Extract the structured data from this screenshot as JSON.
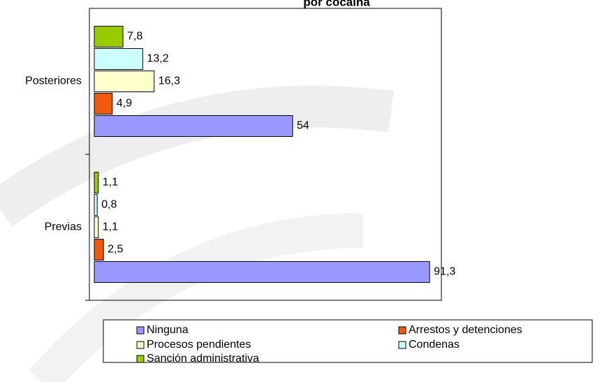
{
  "chart_data": {
    "type": "hbar",
    "title": "por cocaína",
    "categories": [
      "Posteriores",
      "Previas"
    ],
    "series": [
      {
        "name": "Ninguna",
        "color": "#9999ff",
        "values": [
          54,
          91.3
        ],
        "value_labels": [
          "54",
          "91,3"
        ]
      },
      {
        "name": "Arrestos y detenciones",
        "color": "#f05a0a",
        "values": [
          4.9,
          2.5
        ],
        "value_labels": [
          "4,9",
          "2,5"
        ]
      },
      {
        "name": "Procesos pendientes",
        "color": "#ffffcc",
        "values": [
          16.3,
          1.1
        ],
        "value_labels": [
          "16,3",
          "1,1"
        ]
      },
      {
        "name": "Condenas",
        "color": "#ccffff",
        "values": [
          13.2,
          0.8
        ],
        "value_labels": [
          "13,2",
          "0,8"
        ]
      },
      {
        "name": "Sanción administrativa",
        "color": "#99cc00",
        "values": [
          7.8,
          1.1
        ],
        "value_labels": [
          "7,8",
          "1,1"
        ]
      }
    ],
    "xlim": [
      0,
      94.5
    ],
    "legend": "bottom"
  }
}
